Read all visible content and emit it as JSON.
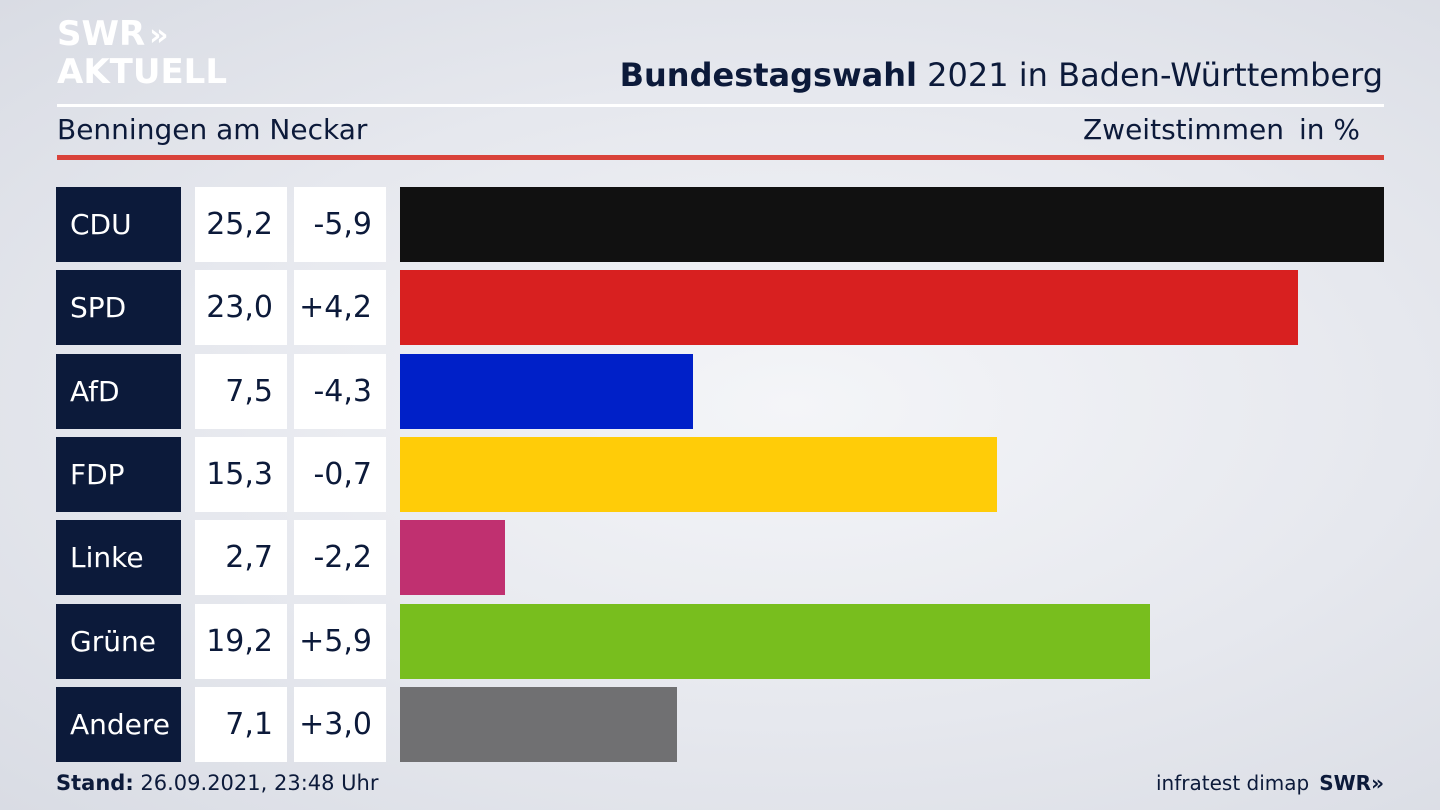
{
  "logo": {
    "line1": "SWR",
    "line2": "AKTUELL",
    "chevrons": "»"
  },
  "header": {
    "title_bold": "Bundestagswahl",
    "title_rest": " 2021 in Baden-Württemberg",
    "subtitle": "Benningen am Neckar",
    "measure": "Zweitstimmen",
    "unit": "in %"
  },
  "chart_data": {
    "type": "bar",
    "orientation": "horizontal",
    "title": "Bundestagswahl 2021 in Baden-Württemberg",
    "subtitle": "Benningen am Neckar",
    "measure": "Zweitstimmen",
    "unit": "in %",
    "categories": [
      "CDU",
      "SPD",
      "AfD",
      "FDP",
      "Linke",
      "Grüne",
      "Andere"
    ],
    "values": [
      25.2,
      23.0,
      7.5,
      15.3,
      2.7,
      19.2,
      7.1
    ],
    "value_labels": [
      "25,2",
      "23,0",
      "7,5",
      "15,3",
      "2,7",
      "19,2",
      "7,1"
    ],
    "change_labels": [
      "-5,9",
      "+4,2",
      "-4,3",
      "-0,7",
      "-2,2",
      "+5,9",
      "+3,0"
    ],
    "colors": [
      "#111111",
      "#d82020",
      "#0020c8",
      "#ffcc08",
      "#c03070",
      "#78be1e",
      "#707072"
    ],
    "xlim": [
      0,
      25.2
    ],
    "grid": false,
    "legend": "none"
  },
  "footer": {
    "stand_label": "Stand:",
    "stand_value": " 26.09.2021, 23:48 Uhr",
    "source": "infratest dimap",
    "brand": "SWR»"
  }
}
